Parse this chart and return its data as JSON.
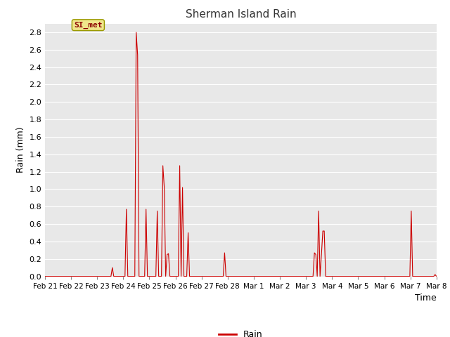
{
  "title": "Sherman Island Rain",
  "xlabel": "Time",
  "ylabel": "Rain (mm)",
  "legend_label": "Rain",
  "line_color": "#cc0000",
  "fig_bg_color": "#ffffff",
  "plot_bg_color": "#e8e8e8",
  "grid_color": "#ffffff",
  "ylim": [
    0.0,
    2.9
  ],
  "yticks": [
    0.0,
    0.2,
    0.4,
    0.6,
    0.8,
    1.0,
    1.2,
    1.4,
    1.6,
    1.8,
    2.0,
    2.2,
    2.4,
    2.6,
    2.8
  ],
  "annotation_text": "SI_met",
  "xtick_labels": [
    "Feb 21",
    "Feb 22",
    "Feb 23",
    "Feb 24",
    "Feb 25",
    "Feb 26",
    "Feb 27",
    "Feb 28",
    "Mar 1",
    "Mar 2",
    "Mar 3",
    "Mar 4",
    "Mar 5",
    "Mar 6",
    "Mar 7",
    "Mar 8"
  ],
  "time_series_y": [
    0.0,
    0.0,
    0.0,
    0.0,
    0.0,
    0.0,
    0.0,
    0.0,
    0.0,
    0.0,
    0.0,
    0.0,
    0.0,
    0.0,
    0.0,
    0.0,
    0.0,
    0.0,
    0.0,
    0.0,
    0.0,
    0.0,
    0.0,
    0.0,
    0.0,
    0.0,
    0.0,
    0.0,
    0.0,
    0.0,
    0.0,
    0.0,
    0.0,
    0.0,
    0.0,
    0.0,
    0.0,
    0.0,
    0.0,
    0.0,
    0.0,
    0.0,
    0.0,
    0.0,
    0.0,
    0.0,
    0.0,
    0.0,
    0.1,
    0.0,
    0.0,
    0.0,
    0.0,
    0.0,
    0.0,
    0.0,
    0.0,
    0.0,
    0.77,
    0.0,
    0.0,
    0.0,
    0.0,
    0.0,
    0.0,
    2.8,
    2.54,
    0.0,
    0.0,
    0.0,
    0.0,
    0.0,
    0.77,
    0.0,
    0.0,
    0.0,
    0.0,
    0.0,
    0.0,
    0.0,
    0.75,
    0.0,
    0.0,
    0.0,
    1.27,
    1.02,
    0.0,
    0.25,
    0.26,
    0.0,
    0.0,
    0.0,
    0.0,
    0.0,
    0.0,
    0.0,
    1.27,
    0.0,
    1.02,
    0.0,
    0.0,
    0.0,
    0.5,
    0.0,
    0.0,
    0.0,
    0.0,
    0.0,
    0.0,
    0.0,
    0.0,
    0.0,
    0.0,
    0.0,
    0.0,
    0.0,
    0.0,
    0.0,
    0.0,
    0.0,
    0.0,
    0.0,
    0.0,
    0.0,
    0.0,
    0.0,
    0.0,
    0.0,
    0.27,
    0.0,
    0.0,
    0.0,
    0.0,
    0.0,
    0.0,
    0.0,
    0.0,
    0.0,
    0.0,
    0.0,
    0.0,
    0.0,
    0.0,
    0.0,
    0.0,
    0.0,
    0.0,
    0.0,
    0.0,
    0.0,
    0.0,
    0.0,
    0.0,
    0.0,
    0.0,
    0.0,
    0.0,
    0.0,
    0.0,
    0.0,
    0.0,
    0.0,
    0.0,
    0.0,
    0.0,
    0.0,
    0.0,
    0.0,
    0.0,
    0.0,
    0.0,
    0.0,
    0.0,
    0.0,
    0.0,
    0.0,
    0.0,
    0.0,
    0.0,
    0.0,
    0.0,
    0.0,
    0.0,
    0.0,
    0.0,
    0.0,
    0.0,
    0.0,
    0.0,
    0.0,
    0.0,
    0.0,
    0.27,
    0.25,
    0.0,
    0.75,
    0.0,
    0.25,
    0.52,
    0.52,
    0.0,
    0.0,
    0.0,
    0.0,
    0.0,
    0.0,
    0.0,
    0.0,
    0.0,
    0.0,
    0.0,
    0.0,
    0.0,
    0.0,
    0.0,
    0.0,
    0.0,
    0.0,
    0.0,
    0.0,
    0.0,
    0.0,
    0.0,
    0.0,
    0.0,
    0.0,
    0.0,
    0.0,
    0.0,
    0.0,
    0.0,
    0.0,
    0.0,
    0.0,
    0.0,
    0.0,
    0.0,
    0.0,
    0.0,
    0.0,
    0.0,
    0.0,
    0.0,
    0.0,
    0.0,
    0.0,
    0.0,
    0.0,
    0.0,
    0.0,
    0.0,
    0.0,
    0.0,
    0.0,
    0.0,
    0.0,
    0.0,
    0.0,
    0.0,
    0.0,
    0.0,
    0.75,
    0.0,
    0.0,
    0.0,
    0.0,
    0.0,
    0.0,
    0.0,
    0.0,
    0.0,
    0.0,
    0.0,
    0.0,
    0.0,
    0.0,
    0.0,
    0.0,
    0.02,
    0.0
  ],
  "n_days": 16,
  "total_hours": 384,
  "xlabel_ha": "right"
}
